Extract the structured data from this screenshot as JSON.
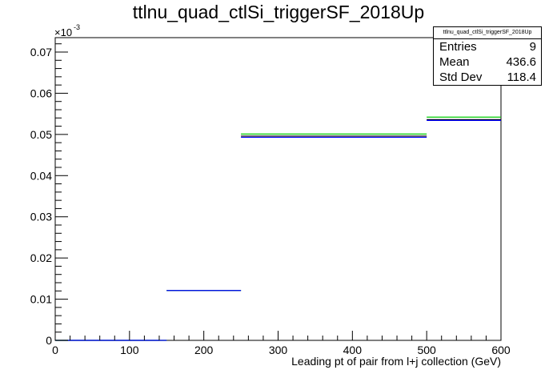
{
  "title": "ttlnu_quad_ctlSi_triggerSF_2018Up",
  "stats": {
    "name": "ttlnu_quad_ctlSi_triggerSF_2018Up",
    "rows": [
      {
        "label": "Entries",
        "value": "9"
      },
      {
        "label": "Mean",
        "value": "436.6"
      },
      {
        "label": "Std Dev",
        "value": "118.4"
      }
    ]
  },
  "colors": {
    "black": "#000000",
    "green": "#00cc00",
    "blue": "#0000ff"
  },
  "chart_data": {
    "type": "histogram",
    "title": "ttlnu_quad_ctlSi_triggerSF_2018Up",
    "xlabel": "Leading pt of pair from l+j collection (GeV)",
    "ylabel": "",
    "y_multiplier": "×10",
    "y_multiplier_exp": "-3",
    "xlim": [
      0,
      600
    ],
    "ylim": [
      0,
      7.35e-05
    ],
    "x_ticks": [
      0,
      100,
      200,
      300,
      400,
      500,
      600
    ],
    "x_tick_labels": [
      "0",
      "100",
      "200",
      "300",
      "400",
      "500",
      "600"
    ],
    "y_ticks": [
      0,
      1e-05,
      2e-05,
      3e-05,
      4e-05,
      5e-05,
      6e-05,
      7e-05
    ],
    "y_tick_labels": [
      "0",
      "0.01",
      "0.02",
      "0.03",
      "0.04",
      "0.05",
      "0.06",
      "0.07"
    ],
    "bin_edges": [
      0,
      20,
      40,
      60,
      80,
      100,
      120,
      140,
      150,
      250,
      500,
      600
    ],
    "series": [
      {
        "color": "#000000",
        "values": [
          0,
          0,
          0,
          0,
          0,
          0,
          0,
          0,
          1.21e-05,
          4.96e-05,
          5.36e-05
        ]
      },
      {
        "color": "#00cc00",
        "values": [
          0,
          0,
          0,
          0,
          0,
          0,
          0,
          0,
          1.21e-05,
          5.01e-05,
          5.42e-05
        ]
      },
      {
        "color": "#0000ff",
        "values": [
          0,
          0,
          0,
          0,
          0,
          0,
          0,
          0,
          1.21e-05,
          4.93e-05,
          5.34e-05
        ]
      }
    ]
  }
}
